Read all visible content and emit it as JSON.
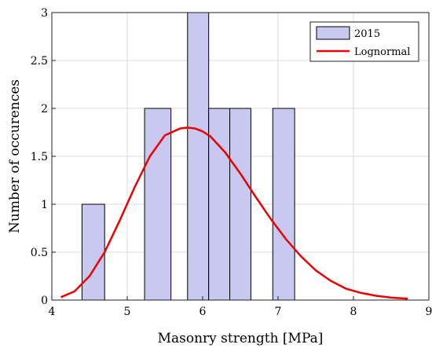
{
  "chart_data": {
    "type": "bar",
    "title": "",
    "xlabel": "Masonry strength [MPa]",
    "ylabel": "Number of occurences",
    "xlim": [
      4,
      9
    ],
    "ylim": [
      0,
      3
    ],
    "xticks": [
      4,
      5,
      6,
      7,
      8,
      9
    ],
    "yticks": [
      0,
      0.5,
      1,
      1.5,
      2,
      2.5,
      3
    ],
    "xtick_labels": [
      "4",
      "5",
      "6",
      "7",
      "8",
      "9"
    ],
    "ytick_labels": [
      "0",
      "0.5",
      "1",
      "1.5",
      "2",
      "2.5",
      "3"
    ],
    "grid": true,
    "legend_position": "top-right",
    "series": [
      {
        "name": "2015",
        "kind": "histogram",
        "color": "#c8c8f0",
        "edge_color": "#000000",
        "bins": [
          {
            "x0": 4.4,
            "x1": 4.7,
            "count": 1
          },
          {
            "x0": 5.23,
            "x1": 5.58,
            "count": 2
          },
          {
            "x0": 5.8,
            "x1": 6.08,
            "count": 3
          },
          {
            "x0": 6.08,
            "x1": 6.36,
            "count": 2
          },
          {
            "x0": 6.36,
            "x1": 6.64,
            "count": 2
          },
          {
            "x0": 6.93,
            "x1": 7.22,
            "count": 2
          }
        ]
      },
      {
        "name": "Lognormal",
        "kind": "line",
        "color": "#ee0000",
        "x": [
          4.12,
          4.3,
          4.5,
          4.7,
          4.9,
          5.1,
          5.3,
          5.5,
          5.7,
          5.8,
          5.9,
          6.0,
          6.1,
          6.3,
          6.5,
          6.7,
          6.9,
          7.1,
          7.3,
          7.5,
          7.7,
          7.9,
          8.1,
          8.3,
          8.5,
          8.72
        ],
        "y": [
          0.03,
          0.09,
          0.25,
          0.5,
          0.83,
          1.18,
          1.5,
          1.72,
          1.79,
          1.8,
          1.79,
          1.76,
          1.71,
          1.54,
          1.32,
          1.08,
          0.85,
          0.64,
          0.46,
          0.31,
          0.2,
          0.12,
          0.075,
          0.045,
          0.025,
          0.015
        ]
      }
    ]
  }
}
